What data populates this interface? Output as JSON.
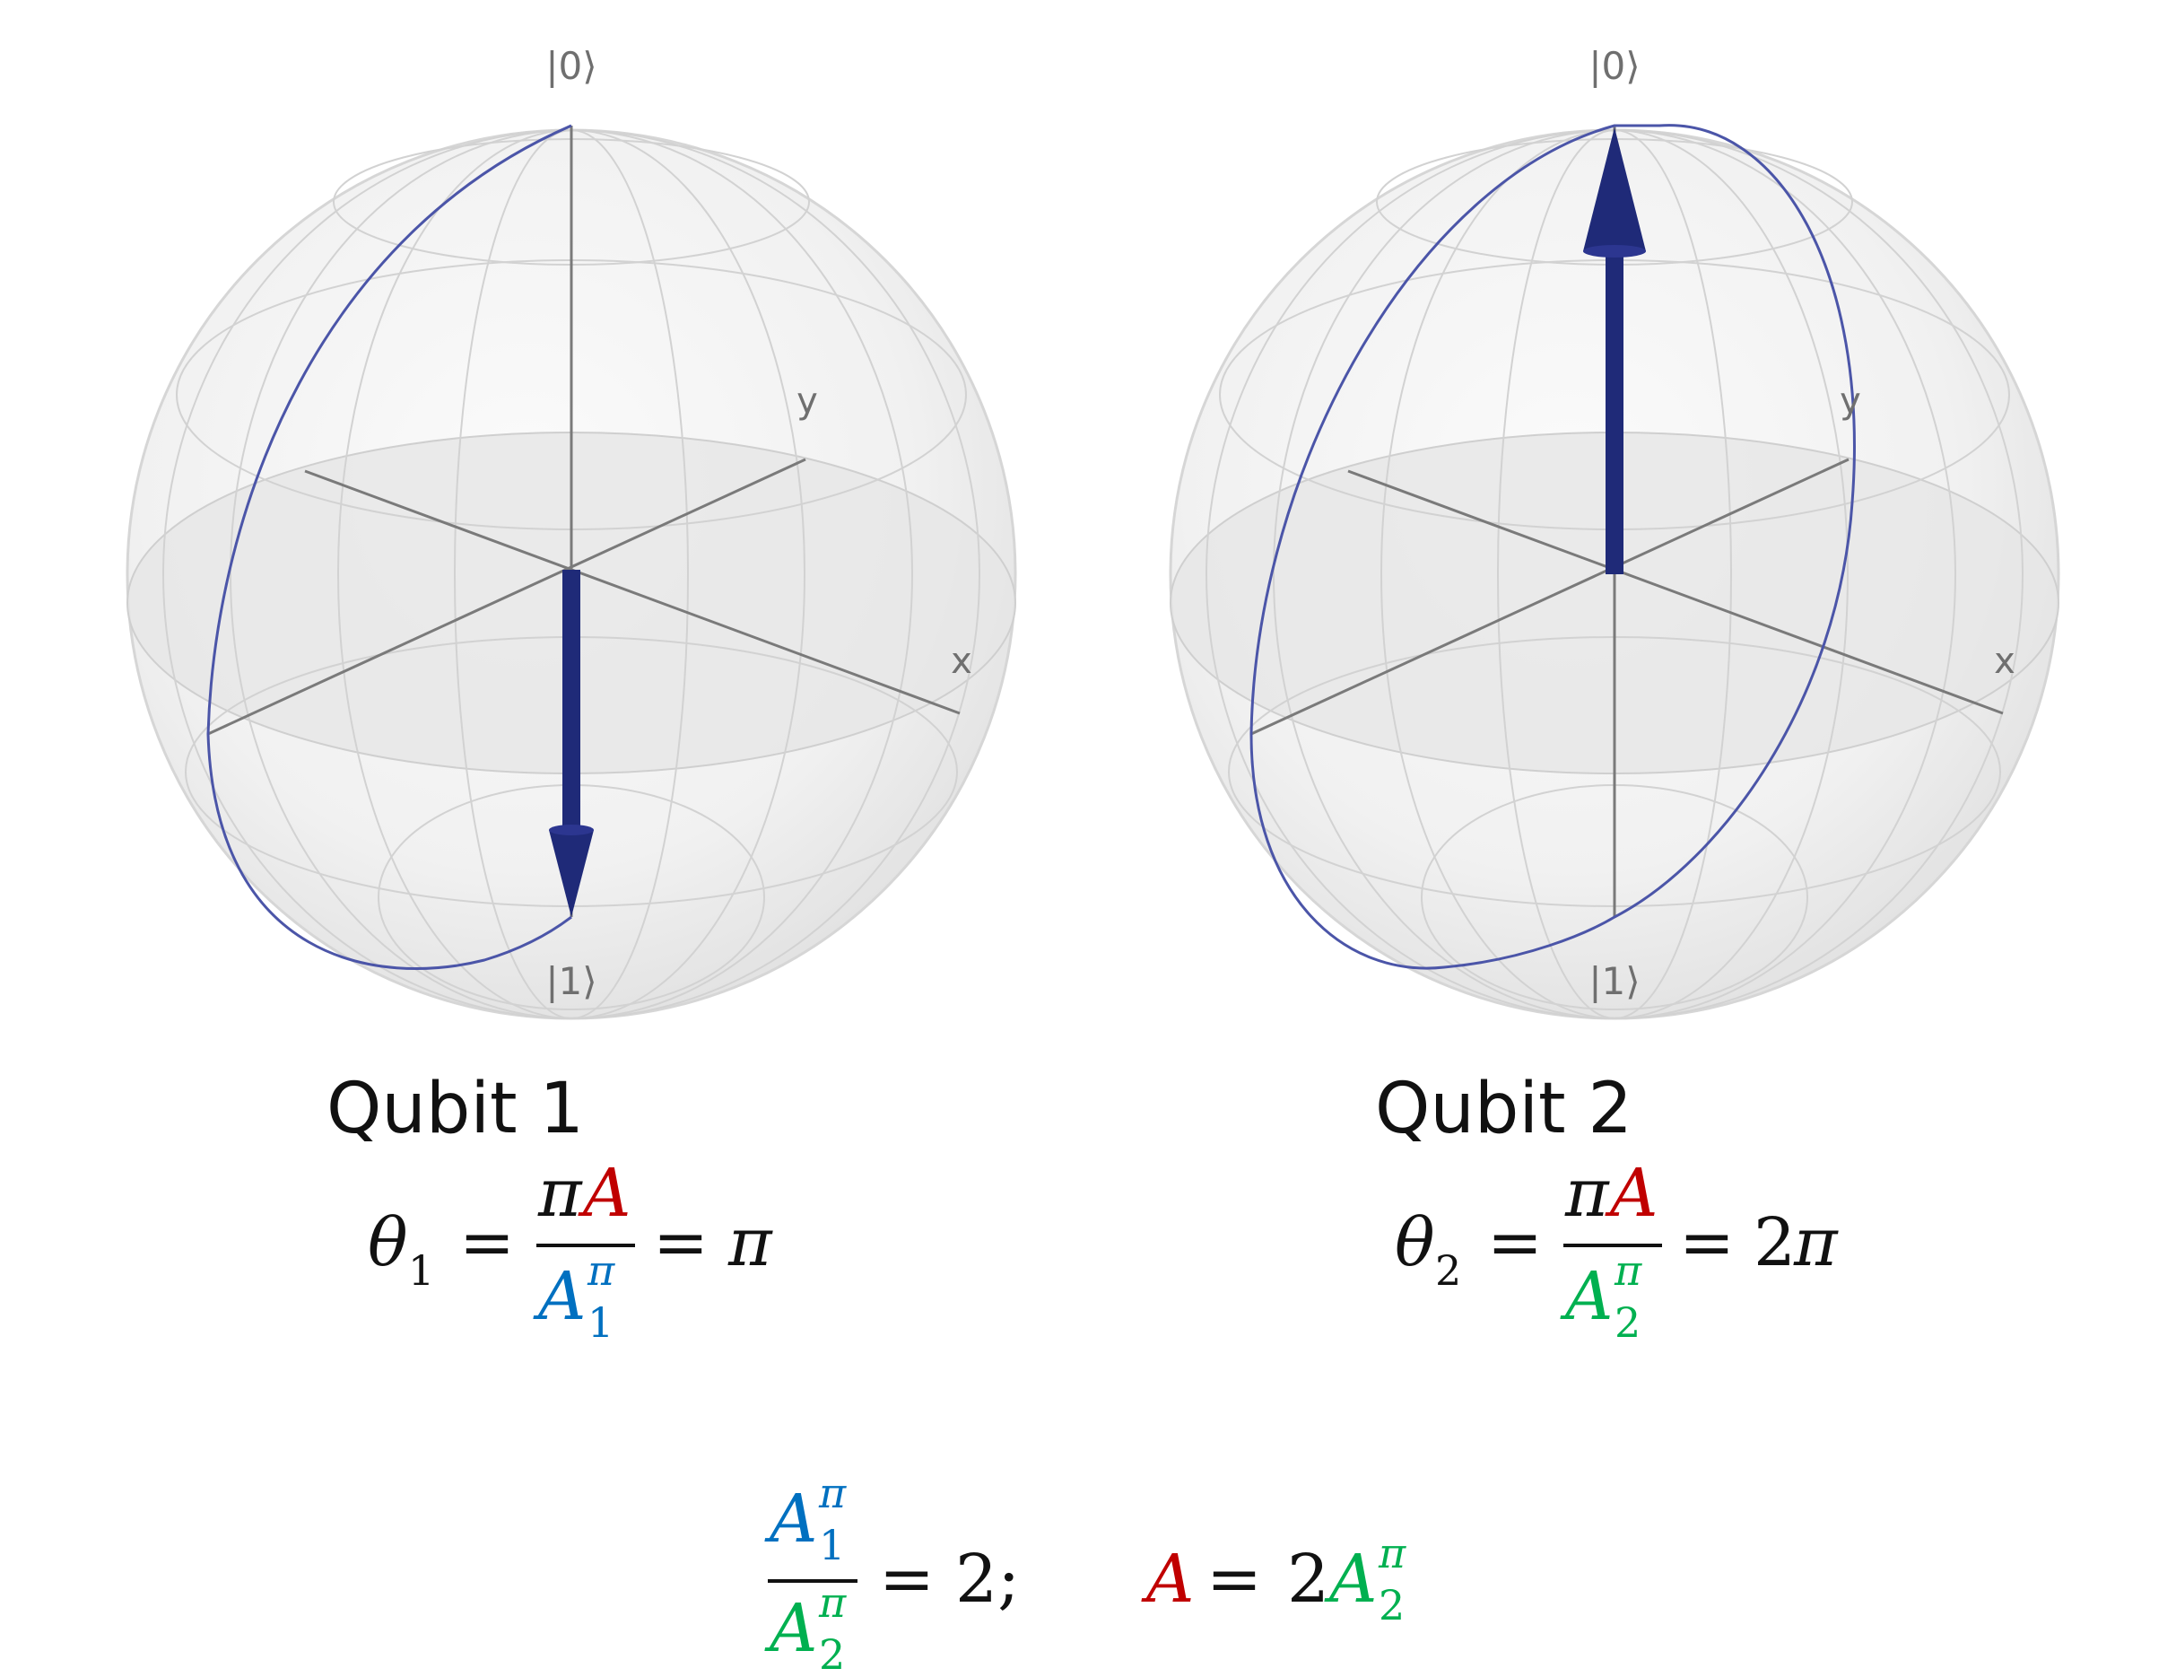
{
  "colors": {
    "a_red": "#c00000",
    "a1_blue": "#0070c0",
    "a2_green": "#00b050",
    "vector_navy": "#1f2a78",
    "trajectory": "#4b55a8",
    "axis_gray": "#6f6f6f"
  },
  "spheres": [
    {
      "top_ket": "|0⟩",
      "bottom_ket": "|1⟩",
      "axis_x": "x",
      "axis_y": "y",
      "state_vector": "down",
      "caption": "Qubit 1",
      "eq_lhs_symbol": "θ",
      "eq_lhs_sub": "1",
      "eq_equals1": "=",
      "eq_num_pi": "π",
      "eq_num_A": "A",
      "eq_den_A": "A",
      "eq_den_sub": "1",
      "eq_den_sup": "π",
      "eq_equals2": "=",
      "eq_result": "π"
    },
    {
      "top_ket": "|0⟩",
      "bottom_ket": "|1⟩",
      "axis_x": "x",
      "axis_y": "y",
      "state_vector": "up",
      "caption": "Qubit 2",
      "eq_lhs_symbol": "θ",
      "eq_lhs_sub": "2",
      "eq_equals1": "=",
      "eq_num_pi": "π",
      "eq_num_A": "A",
      "eq_den_A": "A",
      "eq_den_sub": "2",
      "eq_den_sup": "π",
      "eq_equals2": "=",
      "eq_result_coef": "2",
      "eq_result": "π"
    }
  ],
  "relation": {
    "num_A": "A",
    "num_sub": "1",
    "num_sup": "π",
    "den_A": "A",
    "den_sub": "2",
    "den_sup": "π",
    "equals1": "=",
    "value": "2;",
    "rhs_A": "A",
    "equals2": "=",
    "rhs_coef": "2",
    "rhs_A2": "A",
    "rhs_sub": "2",
    "rhs_sup": "π"
  }
}
